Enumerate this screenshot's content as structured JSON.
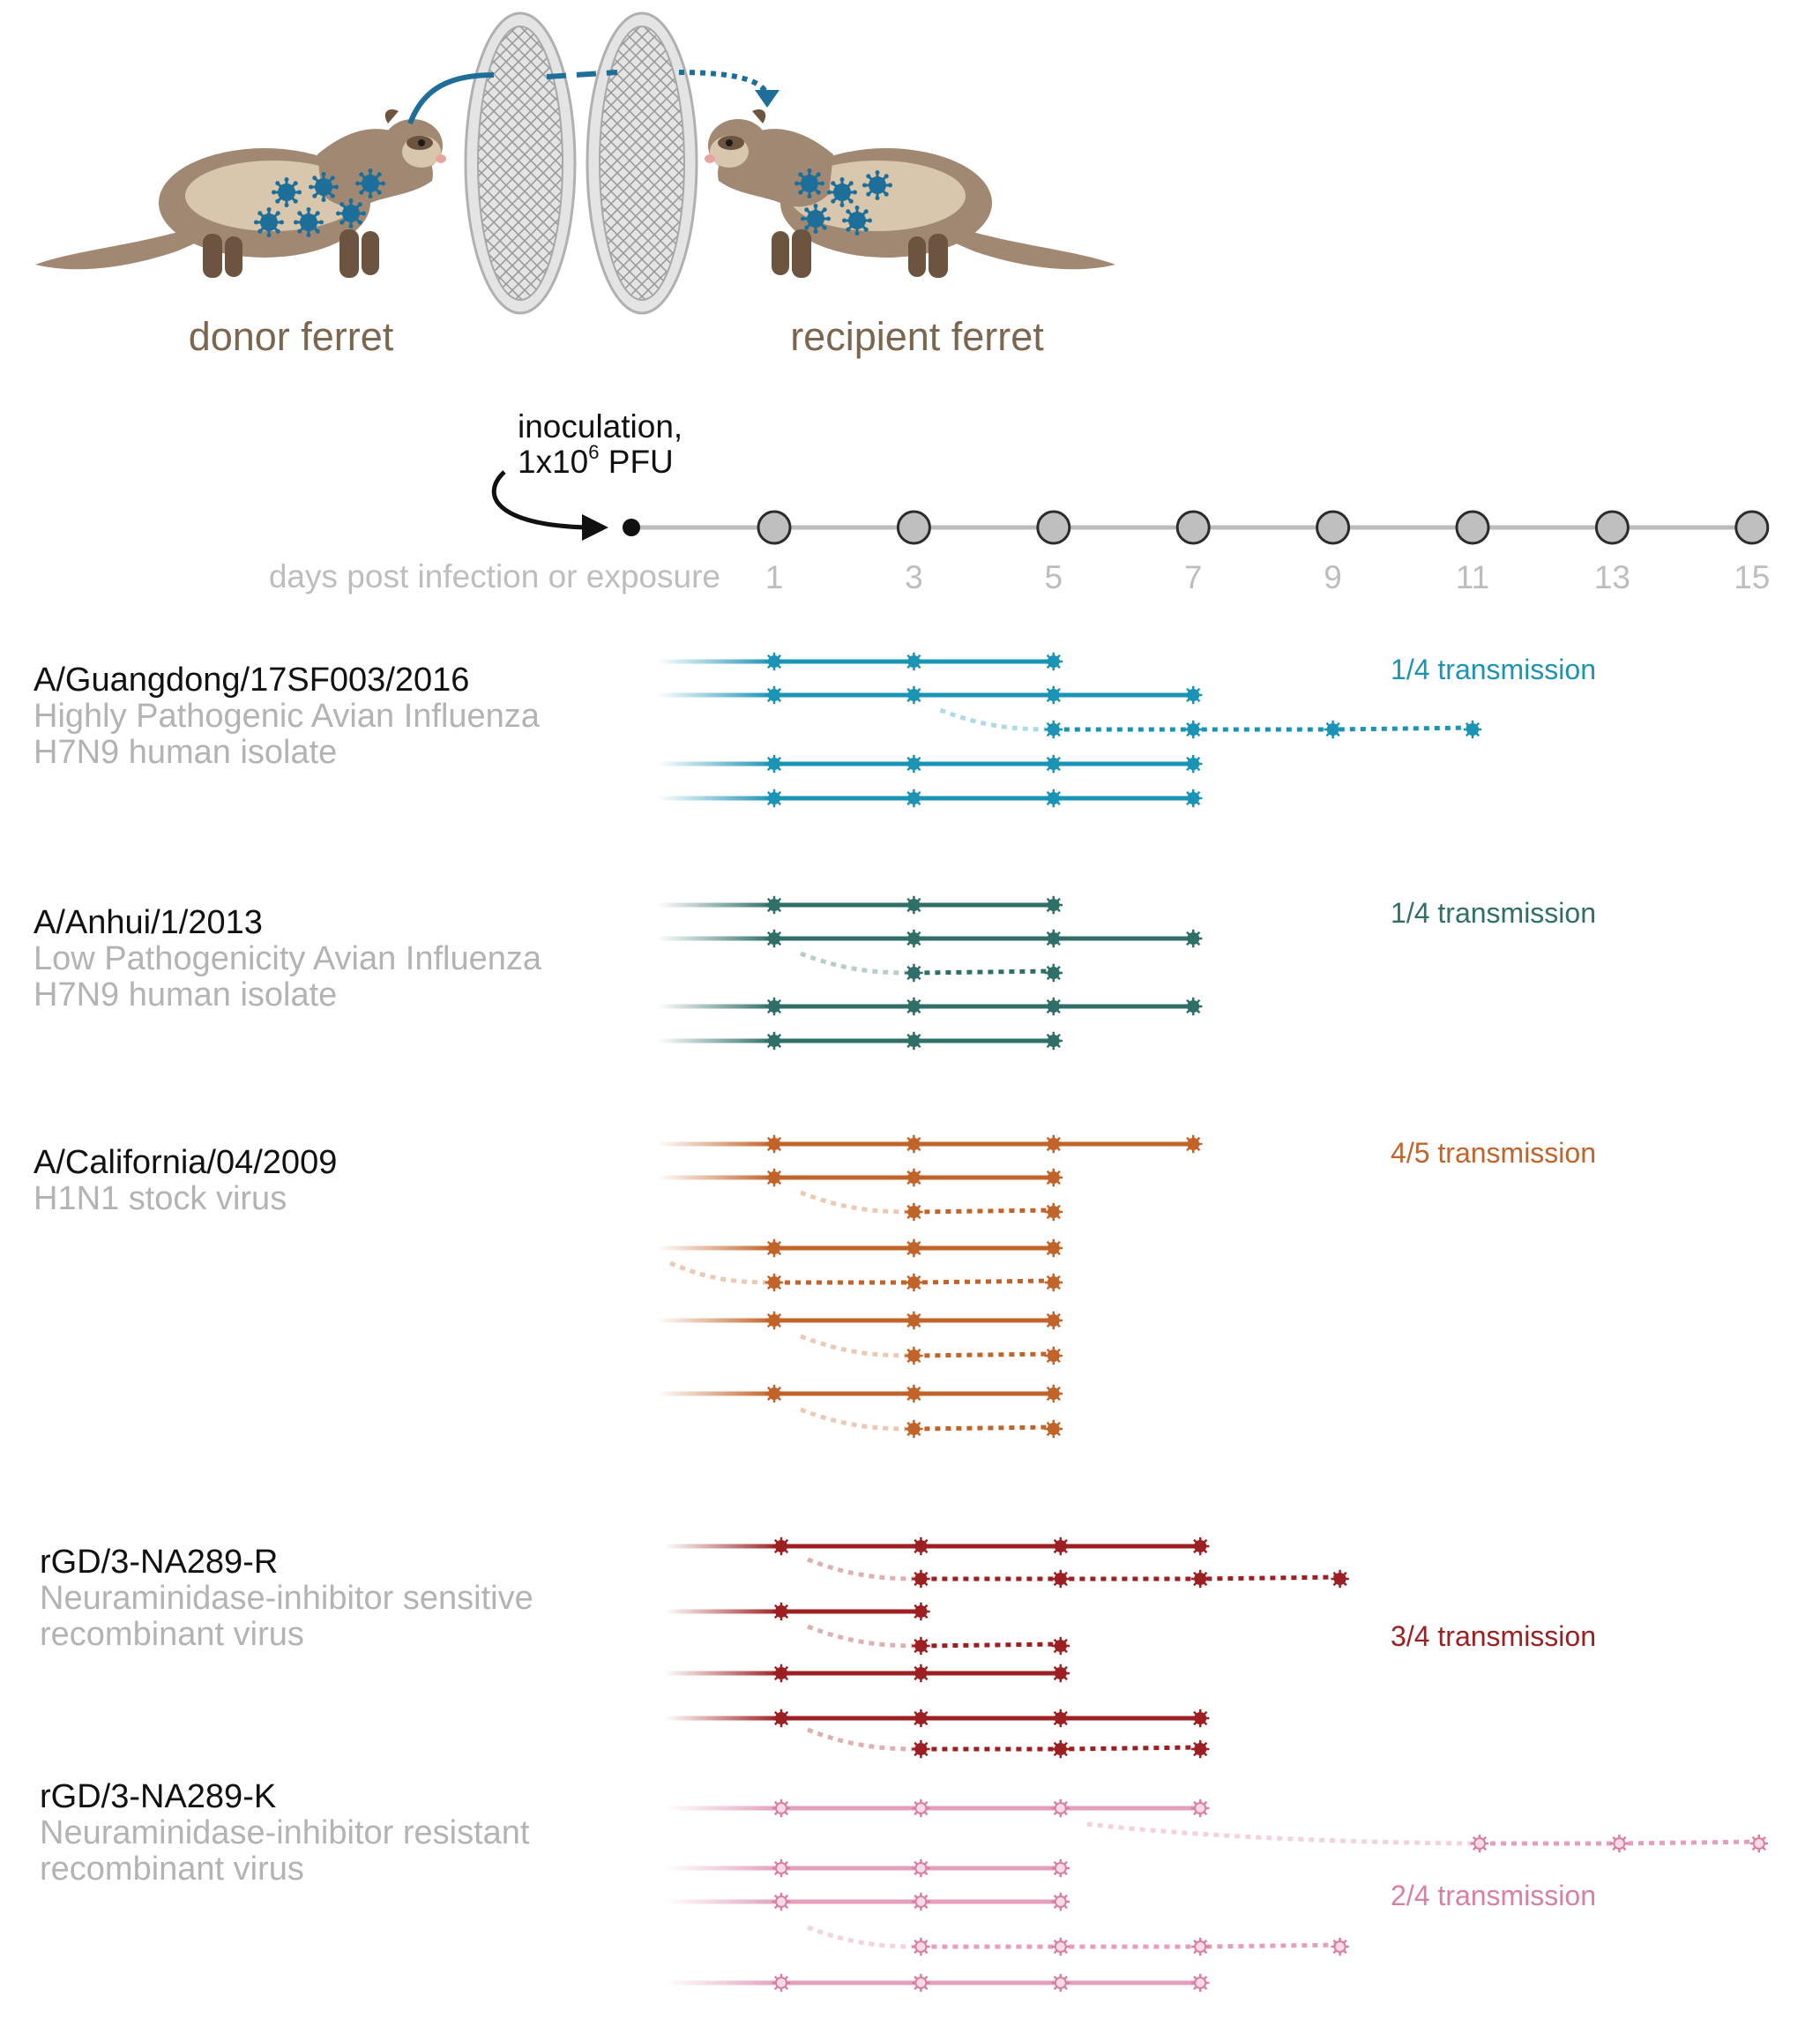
{
  "header": {
    "donor_label": "donor ferret",
    "recipient_label": "recipient ferret",
    "inoculation_line1": "inoculation,",
    "inoculation_line2_prefix": "1x10",
    "inoculation_line2_exp": "6",
    "inoculation_line2_suffix": " PFU"
  },
  "timeline": {
    "axis_label": "days post infection or exposure",
    "days": [
      1,
      3,
      5,
      7,
      9,
      11,
      13,
      15
    ]
  },
  "colors": {
    "ferret_body": "#a08872",
    "ferret_light": "#d8c7ad",
    "ferret_dark": "#6d5440",
    "virus": "#1d6e99",
    "header_arrow": "#1d6e99",
    "label_brown": "#7b6650",
    "axis_grey": "#bdbdbd",
    "subtitle_grey": "#b3b3b3"
  },
  "groups": [
    {
      "name": "A/Guangdong/17SF003/2016",
      "desc1": "Highly Pathogenic Avian Influenza",
      "desc2": "H7N9 human isolate",
      "transmission": "1/4 transmission",
      "color": "#1a93b5",
      "light": false,
      "rows": [
        {
          "type": "donor",
          "days": [
            1,
            3,
            5
          ]
        },
        {
          "type": "donor",
          "days": [
            1,
            3,
            5,
            7
          ]
        },
        {
          "type": "recipient",
          "from": 3,
          "days": [
            5,
            7,
            9,
            11
          ]
        },
        {
          "type": "donor",
          "days": [
            1,
            3,
            5,
            7
          ]
        },
        {
          "type": "donor",
          "days": [
            1,
            3,
            5,
            7
          ]
        }
      ]
    },
    {
      "name": "A/Anhui/1/2013",
      "desc1": "Low Pathogenicity Avian Influenza",
      "desc2": "H7N9 human isolate",
      "transmission": "1/4 transmission",
      "color": "#2f6f68",
      "light": false,
      "rows": [
        {
          "type": "donor",
          "days": [
            1,
            3,
            5
          ]
        },
        {
          "type": "donor",
          "days": [
            1,
            3,
            5,
            7
          ]
        },
        {
          "type": "recipient",
          "from": 1,
          "days": [
            3,
            5
          ]
        },
        {
          "type": "donor",
          "days": [
            1,
            3,
            5,
            7
          ]
        },
        {
          "type": "donor",
          "days": [
            1,
            3,
            5
          ]
        }
      ]
    },
    {
      "name": "A/California/04/2009",
      "desc1": "H1N1 stock virus",
      "desc2": "",
      "transmission": "4/5 transmission",
      "color": "#c2632a",
      "light": false,
      "rows": [
        {
          "type": "donor",
          "days": [
            1,
            3,
            5,
            7
          ]
        },
        {
          "type": "donor",
          "days": [
            1,
            3,
            5
          ]
        },
        {
          "type": "recipient",
          "from": 1,
          "days": [
            3,
            5
          ]
        },
        {
          "type": "donor",
          "days": [
            1,
            3,
            5
          ]
        },
        {
          "type": "recipient",
          "from": -1,
          "days": [
            1,
            3,
            5
          ]
        },
        {
          "type": "donor",
          "days": [
            1,
            3,
            5
          ]
        },
        {
          "type": "recipient",
          "from": 1,
          "days": [
            3,
            5
          ]
        },
        {
          "type": "donor",
          "days": [
            1,
            3,
            5
          ]
        },
        {
          "type": "recipient",
          "from": 1,
          "days": [
            3,
            5
          ]
        }
      ]
    },
    {
      "name": "rGD/3-NA289-R",
      "desc1": "Neuraminidase-inhibitor sensitive",
      "desc2": "recombinant virus",
      "transmission": "3/4 transmission",
      "color": "#9c1f22",
      "light": false,
      "rows": [
        {
          "type": "donor",
          "days": [
            1,
            3,
            5,
            7
          ]
        },
        {
          "type": "recipient",
          "from": 1,
          "days": [
            3,
            5,
            7,
            9
          ]
        },
        {
          "type": "donor",
          "days": [
            1,
            3
          ]
        },
        {
          "type": "recipient",
          "from": 1,
          "days": [
            3,
            5
          ]
        },
        {
          "type": "donor",
          "days": [
            1,
            3,
            5
          ]
        },
        {
          "type": "donor",
          "days": [
            1,
            3,
            5,
            7
          ]
        },
        {
          "type": "recipient",
          "from": 1,
          "days": [
            3,
            5,
            7
          ]
        }
      ]
    },
    {
      "name": "rGD/3-NA289-K",
      "desc1": "Neuraminidase-inhibitor resistant",
      "desc2": "recombinant virus",
      "transmission": "2/4 transmission",
      "color": "#d97fa6",
      "light": true,
      "rows": [
        {
          "type": "donor",
          "days": [
            1,
            3,
            5,
            7
          ]
        },
        {
          "type": "recipient",
          "from": 5,
          "days": [
            11,
            13,
            15
          ]
        },
        {
          "type": "donor",
          "days": [
            1,
            3,
            5
          ]
        },
        {
          "type": "donor",
          "days": [
            1,
            3,
            5
          ]
        },
        {
          "type": "recipient",
          "from": 1,
          "days": [
            3,
            5,
            7,
            9
          ]
        },
        {
          "type": "donor",
          "days": [
            1,
            3,
            5,
            7
          ]
        }
      ]
    }
  ]
}
